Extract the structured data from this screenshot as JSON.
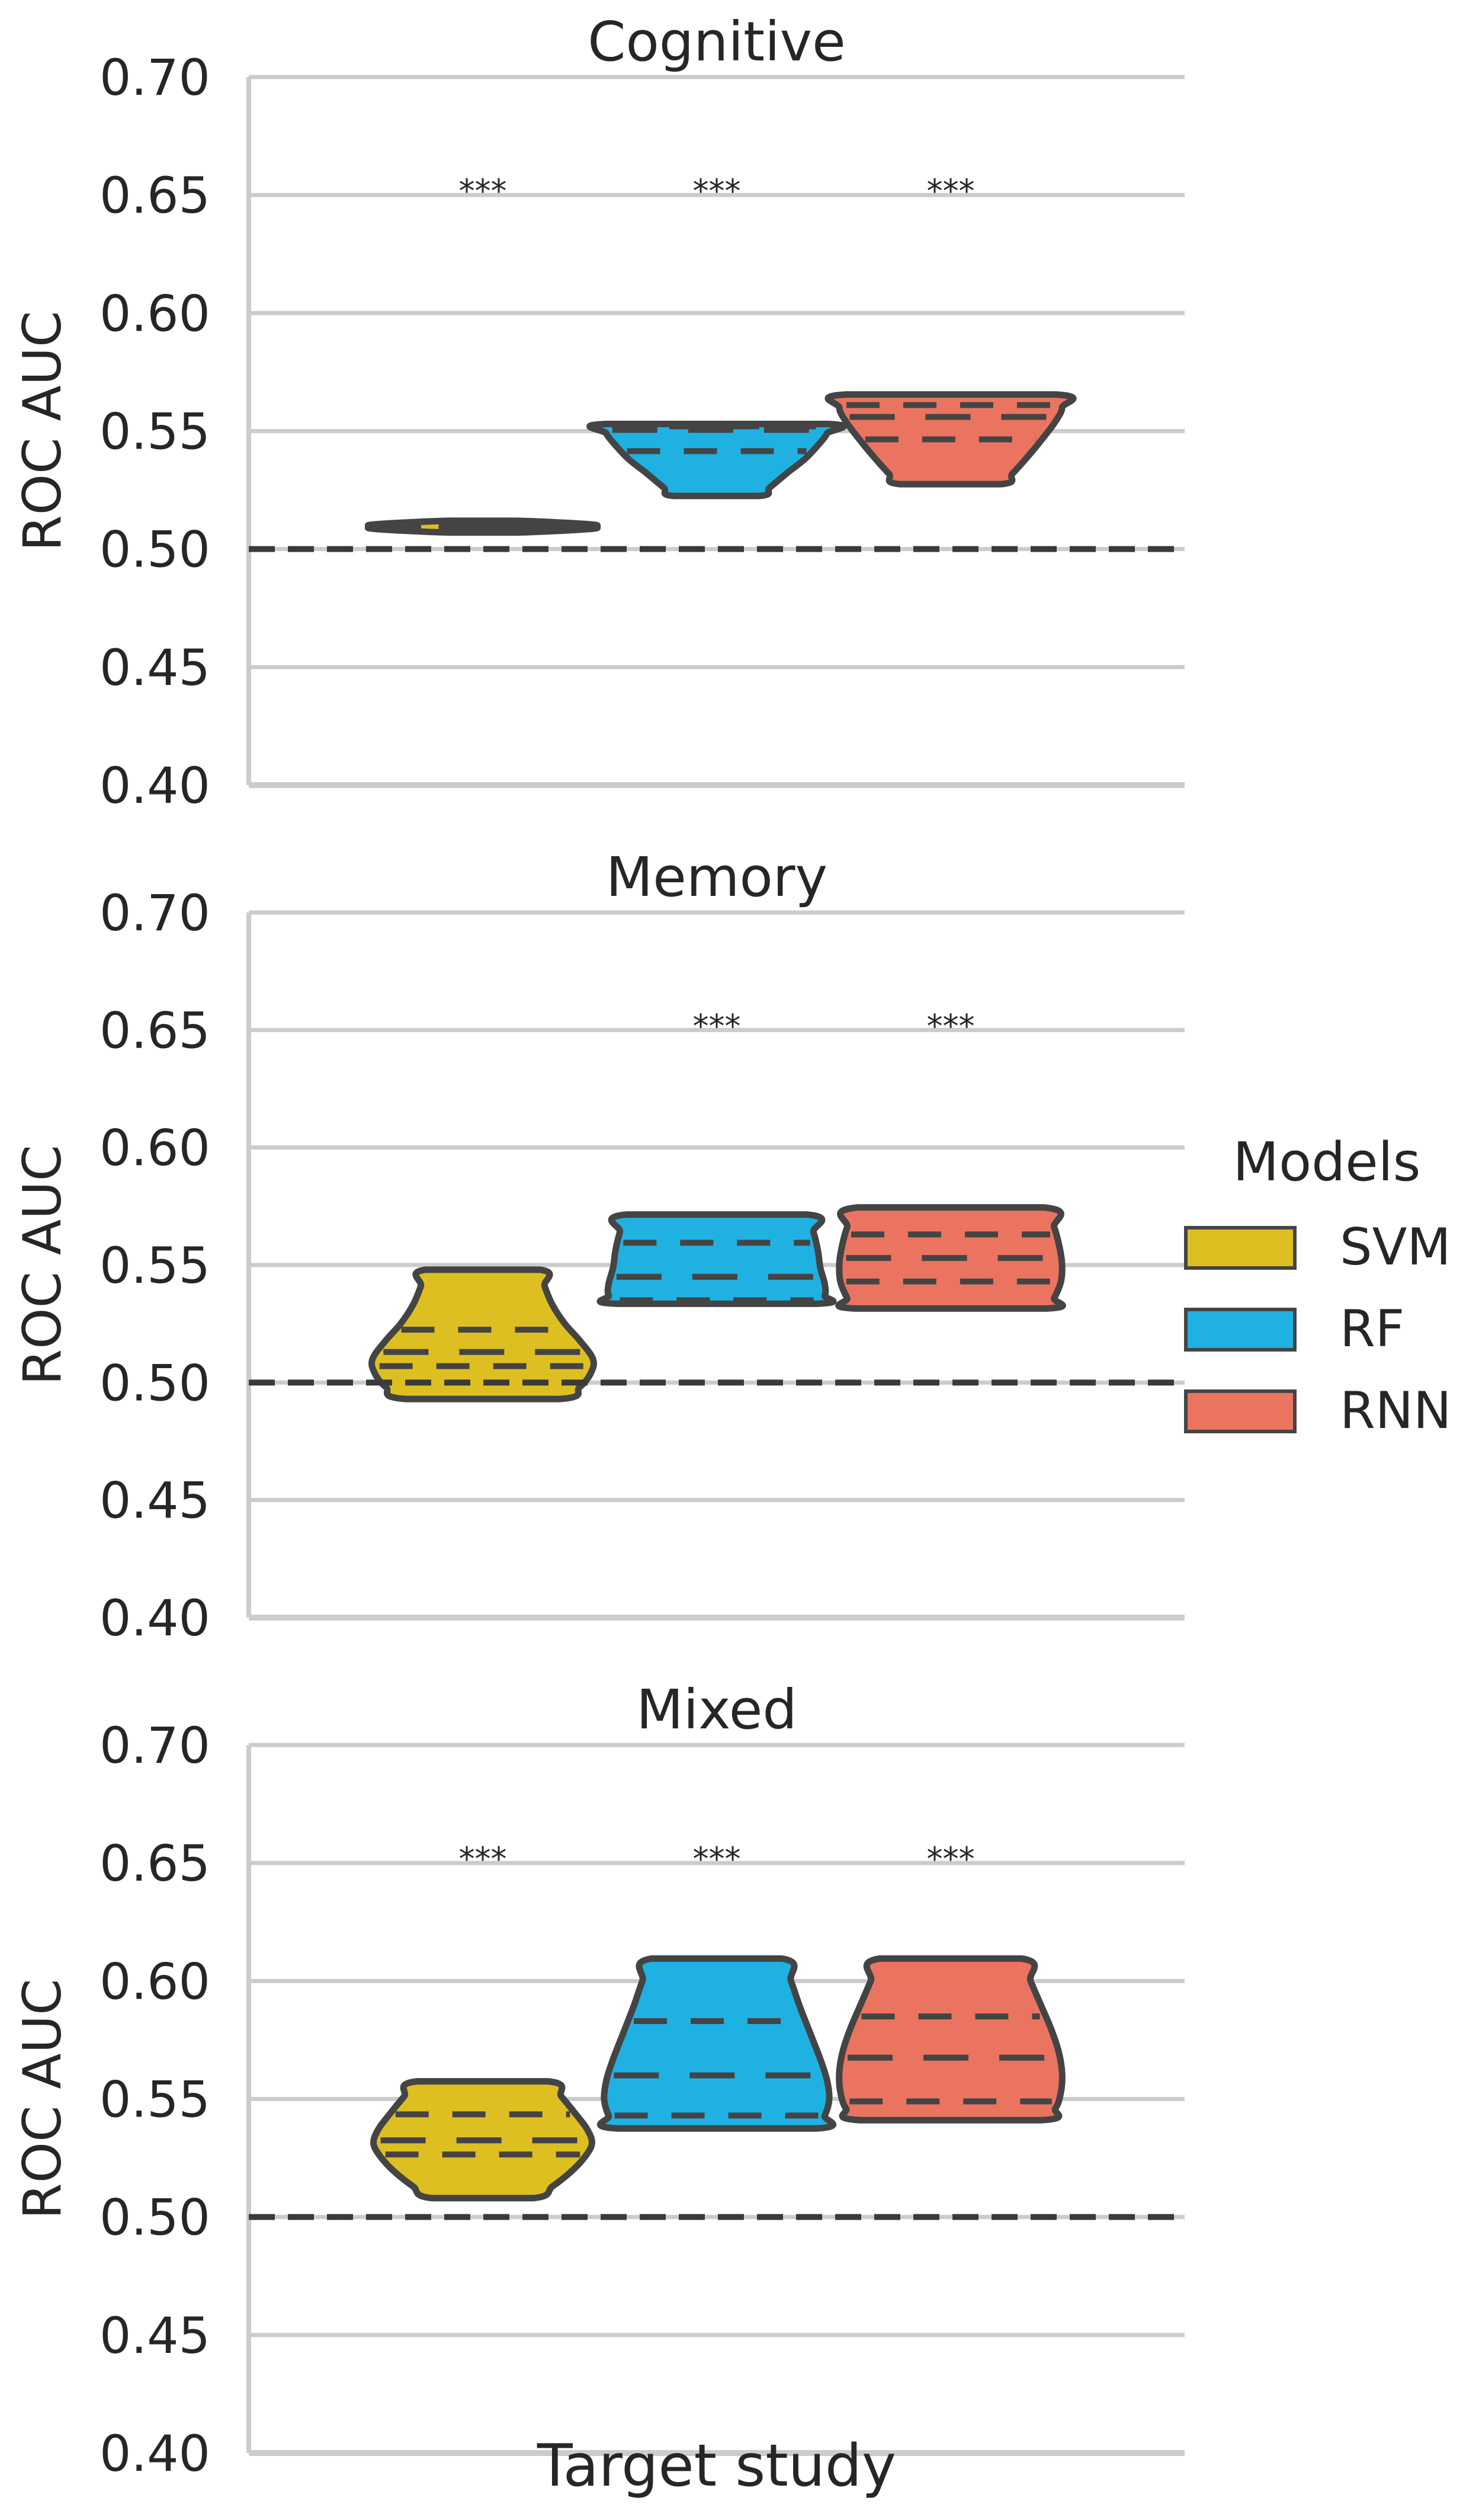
{
  "xlabel": "Target study",
  "ylabel": "ROC AUC",
  "ticks": [
    "0.70",
    "0.65",
    "0.60",
    "0.55",
    "0.50",
    "0.45",
    "0.40"
  ],
  "legend": {
    "title": "Models",
    "items": [
      {
        "label": "SVM",
        "color": "#DDBF22"
      },
      {
        "label": "RF",
        "color": "#20B1E3"
      },
      {
        "label": "RNN",
        "color": "#EB7460"
      }
    ]
  },
  "chart_data": [
    {
      "type": "violin",
      "title": "Cognitive",
      "ylim": [
        0.4,
        0.7
      ],
      "reference_line": 0.5,
      "series": [
        {
          "name": "SVM",
          "color": "#DDBF22",
          "significance": "***",
          "violin": {
            "min": 0.507,
            "max": 0.512,
            "profile": [
              [
                0.507,
                0.3
              ],
              [
                0.5085,
                0.95
              ],
              [
                0.5095,
                1.0
              ],
              [
                0.5105,
                0.95
              ],
              [
                0.512,
                0.3
              ]
            ]
          },
          "quartiles": [
            0.5085,
            0.5095,
            0.5105
          ]
        },
        {
          "name": "RF",
          "color": "#20B1E3",
          "significance": "***",
          "violin": {
            "min": 0.5225,
            "max": 0.553,
            "profile": [
              [
                0.5225,
                0.38
              ],
              [
                0.526,
                0.47
              ],
              [
                0.532,
                0.62
              ],
              [
                0.538,
                0.78
              ],
              [
                0.544,
                0.9
              ],
              [
                0.549,
                0.98
              ],
              [
                0.553,
                0.98
              ]
            ]
          },
          "quartiles": [
            0.5415,
            0.5505,
            0.552
          ]
        },
        {
          "name": "RNN",
          "color": "#EB7460",
          "significance": "***",
          "violin": {
            "min": 0.5275,
            "max": 0.5655,
            "profile": [
              [
                0.5275,
                0.45
              ],
              [
                0.532,
                0.55
              ],
              [
                0.54,
                0.7
              ],
              [
                0.547,
                0.82
              ],
              [
                0.554,
                0.93
              ],
              [
                0.56,
                0.99
              ],
              [
                0.5655,
                0.93
              ]
            ]
          },
          "quartiles": [
            0.5465,
            0.556,
            0.561
          ]
        }
      ]
    },
    {
      "type": "violin",
      "title": "Memory",
      "ylim": [
        0.4,
        0.7
      ],
      "reference_line": 0.5,
      "series": [
        {
          "name": "SVM",
          "color": "#DDBF22",
          "significance": "",
          "violin": {
            "min": 0.493,
            "max": 0.548,
            "profile": [
              [
                0.493,
                0.68
              ],
              [
                0.498,
                0.86
              ],
              [
                0.504,
                0.96
              ],
              [
                0.51,
                0.98
              ],
              [
                0.518,
                0.86
              ],
              [
                0.525,
                0.73
              ],
              [
                0.533,
                0.62
              ],
              [
                0.541,
                0.55
              ],
              [
                0.548,
                0.51
              ]
            ]
          },
          "quartiles": [
            0.507,
            0.513,
            0.5225
          ]
        },
        {
          "name": "RF",
          "color": "#20B1E3",
          "significance": "***",
          "violin": {
            "min": 0.5335,
            "max": 0.5715,
            "profile": [
              [
                0.5335,
                0.88
              ],
              [
                0.537,
                0.96
              ],
              [
                0.542,
                0.96
              ],
              [
                0.549,
                0.92
              ],
              [
                0.556,
                0.9
              ],
              [
                0.564,
                0.86
              ],
              [
                0.5715,
                0.8
              ]
            ]
          },
          "quartiles": [
            0.535,
            0.545,
            0.5595
          ]
        },
        {
          "name": "RNN",
          "color": "#EB7460",
          "significance": "***",
          "violin": {
            "min": 0.5315,
            "max": 0.5745,
            "profile": [
              [
                0.5315,
                0.85
              ],
              [
                0.536,
                0.92
              ],
              [
                0.543,
                0.98
              ],
              [
                0.55,
                0.99
              ],
              [
                0.557,
                0.97
              ],
              [
                0.566,
                0.92
              ],
              [
                0.5745,
                0.83
              ]
            ]
          },
          "quartiles": [
            0.543,
            0.553,
            0.563
          ]
        }
      ]
    },
    {
      "type": "violin",
      "title": "Mixed",
      "ylim": [
        0.4,
        0.7
      ],
      "reference_line": 0.5,
      "series": [
        {
          "name": "SVM",
          "color": "#DDBF22",
          "significance": "***",
          "violin": {
            "min": 0.508,
            "max": 0.5575,
            "profile": [
              [
                0.508,
                0.45
              ],
              [
                0.513,
                0.62
              ],
              [
                0.519,
                0.78
              ],
              [
                0.525,
                0.9
              ],
              [
                0.531,
                0.97
              ],
              [
                0.537,
                0.93
              ],
              [
                0.544,
                0.82
              ],
              [
                0.551,
                0.7
              ],
              [
                0.5575,
                0.58
              ]
            ]
          },
          "quartiles": [
            0.5265,
            0.5325,
            0.5435
          ]
        },
        {
          "name": "RF",
          "color": "#20B1E3",
          "significance": "***",
          "violin": {
            "min": 0.5375,
            "max": 0.6095,
            "profile": [
              [
                0.5375,
                0.88
              ],
              [
                0.543,
                0.96
              ],
              [
                0.55,
                1.0
              ],
              [
                0.558,
                0.98
              ],
              [
                0.567,
                0.92
              ],
              [
                0.578,
                0.83
              ],
              [
                0.589,
                0.74
              ],
              [
                0.6,
                0.66
              ],
              [
                0.6095,
                0.58
              ]
            ]
          },
          "quartiles": [
            0.543,
            0.56,
            0.583
          ]
        },
        {
          "name": "RNN",
          "color": "#EB7460",
          "significance": "***",
          "violin": {
            "min": 0.541,
            "max": 0.6095,
            "profile": [
              [
                0.541,
                0.8
              ],
              [
                0.546,
                0.93
              ],
              [
                0.553,
                0.98
              ],
              [
                0.561,
                0.99
              ],
              [
                0.57,
                0.96
              ],
              [
                0.58,
                0.89
              ],
              [
                0.59,
                0.8
              ],
              [
                0.6,
                0.71
              ],
              [
                0.6095,
                0.63
              ]
            ]
          },
          "quartiles": [
            0.549,
            0.5675,
            0.585
          ]
        }
      ]
    }
  ]
}
